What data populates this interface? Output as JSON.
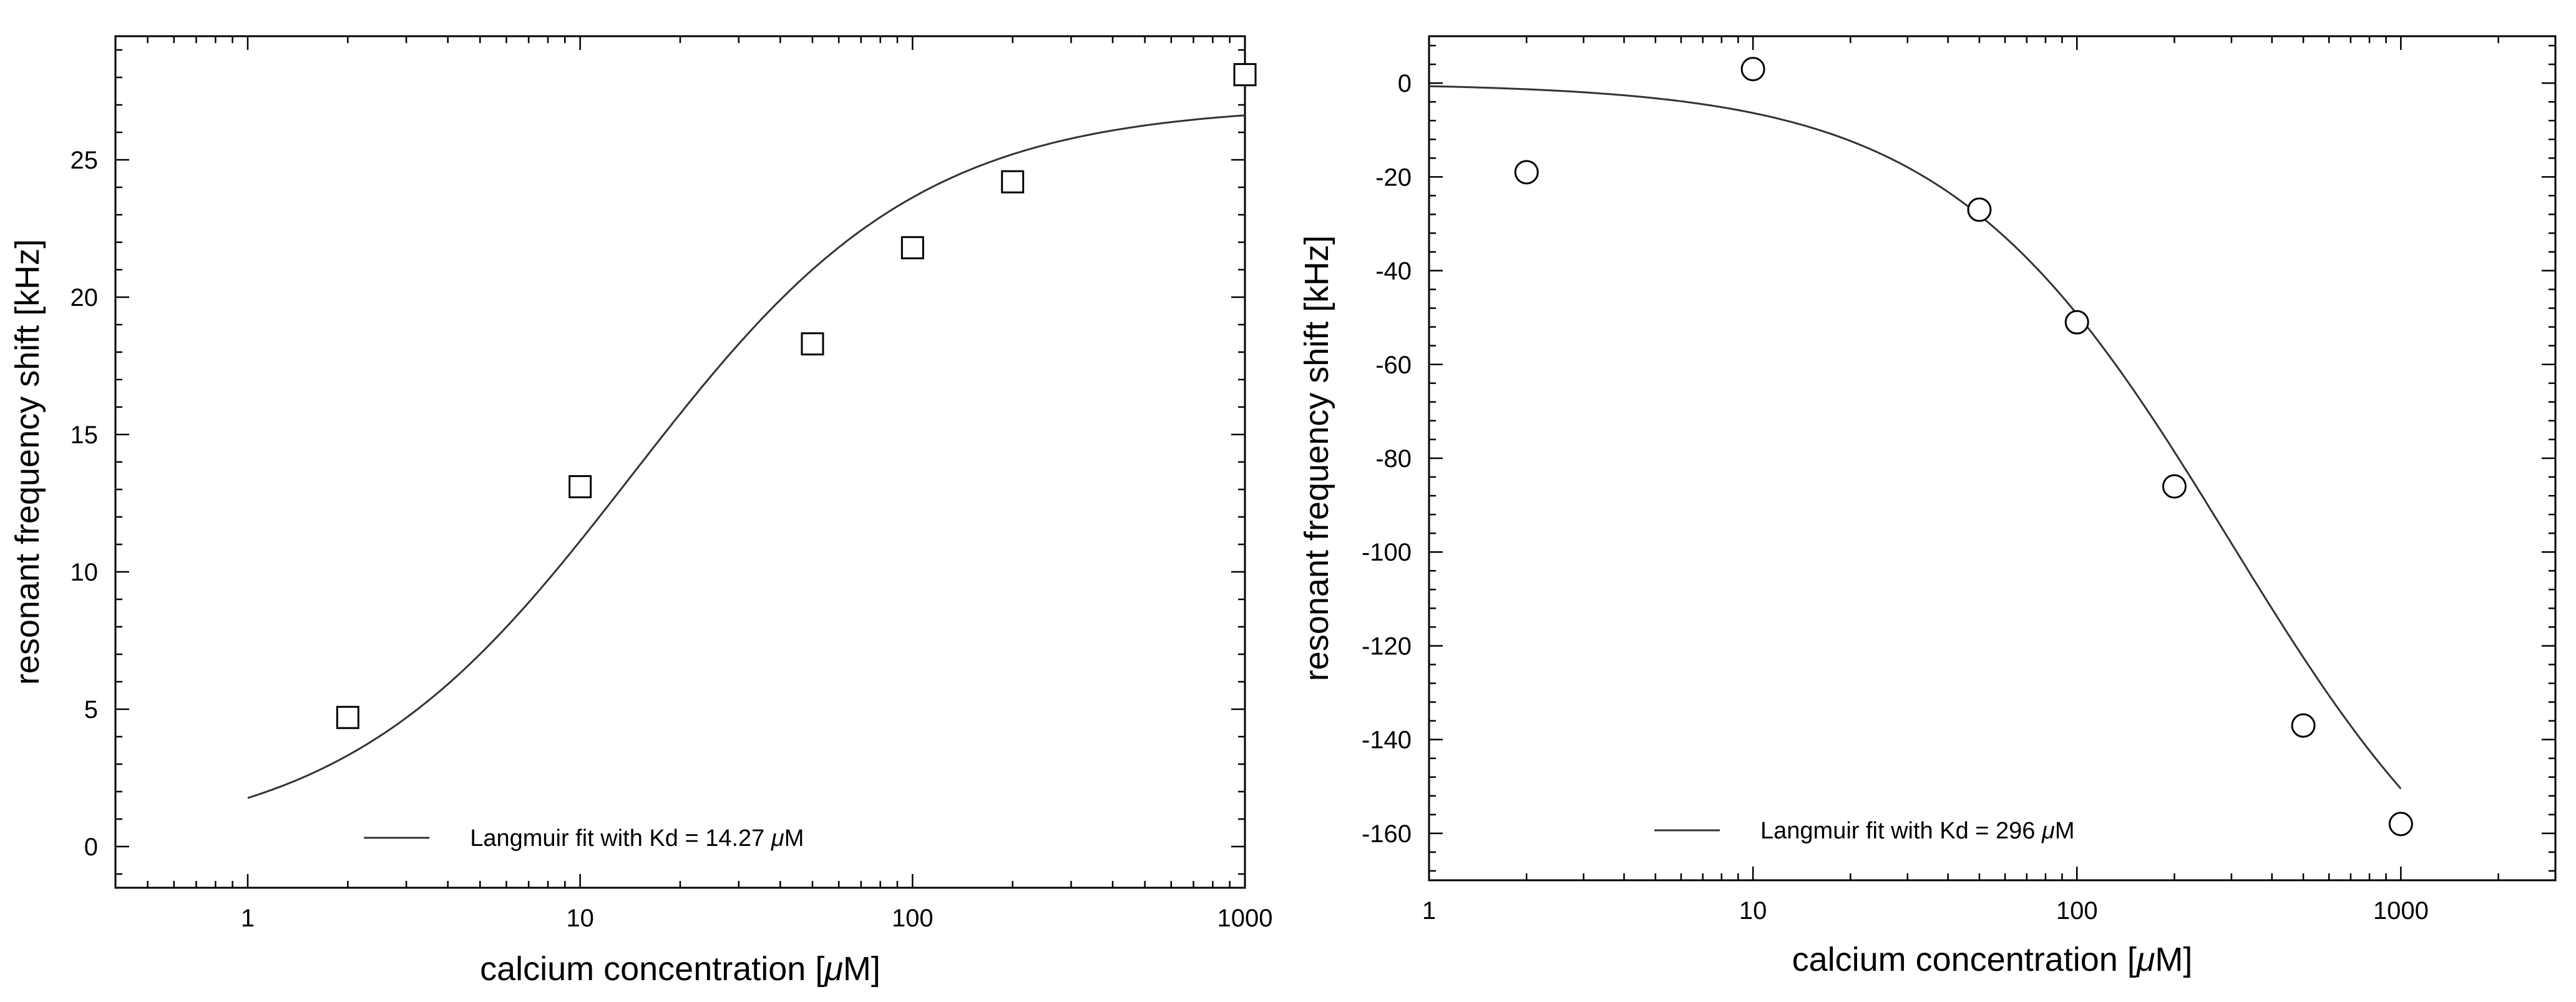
{
  "chart_data": [
    {
      "type": "scatter",
      "xscale": "log",
      "xlim": [
        0.4,
        1000
      ],
      "ylim": [
        -1.5,
        29.5
      ],
      "xlabel_pre": "calcium concentration [",
      "xlabel_mu": "μ",
      "xlabel_post": "M]",
      "ylabel": "resonant frequency shift [kHz]",
      "xticks": [
        1,
        10,
        100,
        1000
      ],
      "xtick_labels": [
        "1",
        "10",
        "100",
        "1000"
      ],
      "yticks": [
        0,
        5,
        10,
        15,
        20,
        25
      ],
      "ytick_labels": [
        "0",
        "5",
        "10",
        "15",
        "20",
        "25"
      ],
      "grid": false,
      "legend_position": "bottom-center",
      "series": [
        {
          "marker": "square",
          "x": [
            2,
            10,
            50,
            100,
            200,
            1000
          ],
          "y": [
            4.7,
            13.1,
            18.3,
            21.8,
            24.2,
            28.1
          ]
        }
      ],
      "fit": {
        "model": "langmuir",
        "bmax": 27.0,
        "kd": 14.27,
        "xrange": [
          1,
          1000
        ],
        "legend_pre": "Langmuir fit with Kd = 14.27 ",
        "legend_mu": "μ",
        "legend_post": "M"
      }
    },
    {
      "type": "scatter",
      "xscale": "log",
      "xlim": [
        1,
        3000
      ],
      "ylim": [
        -170,
        10
      ],
      "xlabel_pre": "calcium concentration [",
      "xlabel_mu": "μ",
      "xlabel_post": "M]",
      "ylabel": "resonant frequency shift [kHz]",
      "xticks": [
        1,
        10,
        100,
        1000
      ],
      "xtick_labels": [
        "1",
        "10",
        "100",
        "1000"
      ],
      "yticks": [
        0,
        -20,
        -40,
        -60,
        -80,
        -100,
        -120,
        -140,
        -160
      ],
      "ytick_labels": [
        "0",
        "-20",
        "-40",
        "-60",
        "-80",
        "-100",
        "-120",
        "-140",
        "-160"
      ],
      "grid": false,
      "legend_position": "bottom-center",
      "series": [
        {
          "marker": "circle",
          "x": [
            2,
            10,
            50,
            100,
            200,
            500,
            1000
          ],
          "y": [
            -19,
            3,
            -27,
            -51,
            -86,
            -137,
            -158
          ]
        }
      ],
      "fit": {
        "model": "langmuir",
        "bmax": -195,
        "kd": 296,
        "xrange": [
          1,
          1000
        ],
        "legend_pre": "Langmuir fit with Kd = 296 ",
        "legend_mu": "μ",
        "legend_post": "M"
      }
    }
  ]
}
